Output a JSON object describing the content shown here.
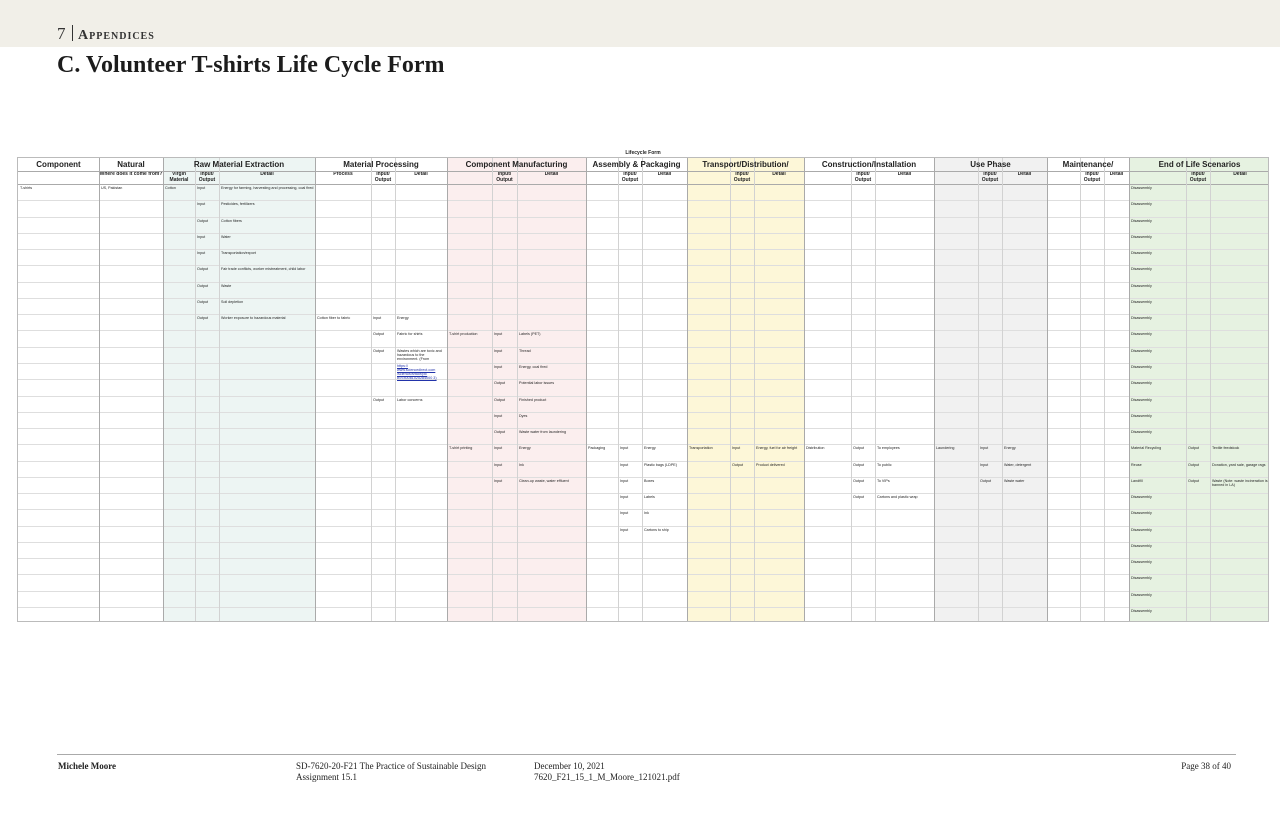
{
  "header": {
    "chapter_number": "7",
    "chapter_name": "Appendices"
  },
  "title": "C. Volunteer T-shirts Life Cycle Form",
  "form": {
    "form_title": "Lifecycle Form",
    "groups": [
      "Component",
      "Natural",
      "Raw Material Extraction",
      "Material Processing",
      "Component Manufacturing",
      "Assembly & Packaging",
      "Transport/Distribution/",
      "Construction/Installation",
      "Use Phase",
      "Maintenance/",
      "End of Life Scenarios"
    ],
    "subheaders": [
      {
        "col": 1,
        "text": "Where does it come from?"
      },
      {
        "col": 2,
        "text": "Virgin Material"
      },
      {
        "col": 3,
        "text": "Input/ Output"
      },
      {
        "col": 4,
        "text": "Detail"
      },
      {
        "col": 5,
        "text": "Process"
      },
      {
        "col": 6,
        "text": "Input/ Output"
      },
      {
        "col": 7,
        "text": "Detail"
      },
      {
        "col": 9,
        "text": "Input/ Output"
      },
      {
        "col": 10,
        "text": "Detail"
      },
      {
        "col": 12,
        "text": "Input/ Output"
      },
      {
        "col": 13,
        "text": "Detail"
      },
      {
        "col": 15,
        "text": "Input/ Output"
      },
      {
        "col": 16,
        "text": "Detail"
      },
      {
        "col": 18,
        "text": "Input/ Output"
      },
      {
        "col": 19,
        "text": "Detail"
      },
      {
        "col": 21,
        "text": "Input/ Output"
      },
      {
        "col": 22,
        "text": "Detail"
      },
      {
        "col": 24,
        "text": "Input/ Output"
      },
      {
        "col": 25,
        "text": "Detail"
      },
      {
        "col": 27,
        "text": "Input/ Output"
      },
      {
        "col": 28,
        "text": "Detail"
      }
    ],
    "colors": {
      "raw": "#edf5f3",
      "component_mfg": "#fbeeee",
      "transport": "#fdf7d8",
      "use": "#f1f1f1",
      "eol": "#e6f2e1"
    },
    "cells": [
      {
        "r": 0,
        "c": 0,
        "t": "T-shirts"
      },
      {
        "r": 0,
        "c": 1,
        "t": "US, Pakistan"
      },
      {
        "r": 0,
        "c": 2,
        "t": "Cotton"
      },
      {
        "r": 0,
        "c": 3,
        "t": "Input"
      },
      {
        "r": 0,
        "c": 4,
        "t": "Energy for farming, harvesting and processing, coal fired"
      },
      {
        "r": 1,
        "c": 3,
        "t": "Input"
      },
      {
        "r": 1,
        "c": 4,
        "t": "Pesticides, fertilizers"
      },
      {
        "r": 2,
        "c": 3,
        "t": "Output"
      },
      {
        "r": 2,
        "c": 4,
        "t": "Cotton fibers"
      },
      {
        "r": 3,
        "c": 3,
        "t": "Input"
      },
      {
        "r": 3,
        "c": 4,
        "t": "Water"
      },
      {
        "r": 4,
        "c": 3,
        "t": "Input"
      },
      {
        "r": 4,
        "c": 4,
        "t": "Transportation/export"
      },
      {
        "r": 5,
        "c": 3,
        "t": "Output"
      },
      {
        "r": 5,
        "c": 4,
        "t": "Fair trade conflicts, worker mistreatment, child labor"
      },
      {
        "r": 6,
        "c": 3,
        "t": "Output"
      },
      {
        "r": 6,
        "c": 4,
        "t": "Waste"
      },
      {
        "r": 7,
        "c": 3,
        "t": "Output"
      },
      {
        "r": 7,
        "c": 4,
        "t": "Soil depletion"
      },
      {
        "r": 8,
        "c": 3,
        "t": "Output"
      },
      {
        "r": 8,
        "c": 4,
        "t": "Worker exposure to hazardous material"
      },
      {
        "r": 8,
        "c": 5,
        "t": "Cotton fiber to fabric"
      },
      {
        "r": 8,
        "c": 6,
        "t": "Input"
      },
      {
        "r": 8,
        "c": 7,
        "t": "Energy"
      },
      {
        "r": 9,
        "c": 6,
        "t": "Output"
      },
      {
        "r": 9,
        "c": 7,
        "t": "Fabric for shirts"
      },
      {
        "r": 9,
        "c": 8,
        "t": "T-shirt production"
      },
      {
        "r": 9,
        "c": 9,
        "t": "Input"
      },
      {
        "r": 9,
        "c": 10,
        "t": "Labels (PET)"
      },
      {
        "r": 10,
        "c": 6,
        "t": "Output"
      },
      {
        "r": 10,
        "c": 7,
        "t": "Wastes which are toxic and hazardous to the environment. (From"
      },
      {
        "r": 10,
        "c": 9,
        "t": "Input"
      },
      {
        "r": 10,
        "c": 10,
        "t": "Thread"
      },
      {
        "r": 11,
        "c": 9,
        "t": "Input"
      },
      {
        "r": 11,
        "c": 10,
        "t": "Energy, coal fired"
      },
      {
        "r": 12,
        "c": 9,
        "t": "Output"
      },
      {
        "r": 12,
        "c": 10,
        "t": "Potential labor issues"
      },
      {
        "r": 13,
        "c": 6,
        "t": "Output"
      },
      {
        "r": 13,
        "c": 7,
        "t": "Labor concerns"
      },
      {
        "r": 13,
        "c": 9,
        "t": "Output"
      },
      {
        "r": 13,
        "c": 10,
        "t": "Finished product"
      },
      {
        "r": 14,
        "c": 9,
        "t": "Input"
      },
      {
        "r": 14,
        "c": 10,
        "t": "Dyes"
      },
      {
        "r": 15,
        "c": 9,
        "t": "Output"
      },
      {
        "r": 15,
        "c": 10,
        "t": "Waste water from laundering"
      },
      {
        "r": 16,
        "c": 8,
        "t": "T-shirt printing"
      },
      {
        "r": 16,
        "c": 9,
        "t": "Input"
      },
      {
        "r": 16,
        "c": 10,
        "t": "Energy"
      },
      {
        "r": 16,
        "c": 11,
        "t": "Packaging"
      },
      {
        "r": 16,
        "c": 12,
        "t": "Input"
      },
      {
        "r": 16,
        "c": 13,
        "t": "Energy"
      },
      {
        "r": 16,
        "c": 14,
        "t": "Transportation"
      },
      {
        "r": 16,
        "c": 15,
        "t": "Input"
      },
      {
        "r": 16,
        "c": 16,
        "t": "Energy, fuel for air freight"
      },
      {
        "r": 16,
        "c": 17,
        "t": "Distribution"
      },
      {
        "r": 16,
        "c": 18,
        "t": "Output"
      },
      {
        "r": 16,
        "c": 19,
        "t": "To employees"
      },
      {
        "r": 16,
        "c": 20,
        "t": "Laundering"
      },
      {
        "r": 16,
        "c": 21,
        "t": "Input"
      },
      {
        "r": 16,
        "c": 22,
        "t": "Energy"
      },
      {
        "r": 16,
        "c": 26,
        "t": "Material Recycling"
      },
      {
        "r": 16,
        "c": 27,
        "t": "Output"
      },
      {
        "r": 16,
        "c": 28,
        "t": "Textile feedstock"
      },
      {
        "r": 17,
        "c": 9,
        "t": "Input"
      },
      {
        "r": 17,
        "c": 10,
        "t": "Ink"
      },
      {
        "r": 17,
        "c": 12,
        "t": "Input"
      },
      {
        "r": 17,
        "c": 13,
        "t": "Plastic bags (LDPE)"
      },
      {
        "r": 17,
        "c": 15,
        "t": "Output"
      },
      {
        "r": 17,
        "c": 16,
        "t": "Product delivered"
      },
      {
        "r": 17,
        "c": 18,
        "t": "Output"
      },
      {
        "r": 17,
        "c": 19,
        "t": "To public"
      },
      {
        "r": 17,
        "c": 21,
        "t": "Input"
      },
      {
        "r": 17,
        "c": 22,
        "t": "Water, detergent"
      },
      {
        "r": 17,
        "c": 26,
        "t": "Reuse"
      },
      {
        "r": 17,
        "c": 27,
        "t": "Output"
      },
      {
        "r": 17,
        "c": 28,
        "t": "Donation, yard sale, garage rags"
      },
      {
        "r": 18,
        "c": 9,
        "t": "Input"
      },
      {
        "r": 18,
        "c": 10,
        "t": "Clean-up waste, water effluent"
      },
      {
        "r": 18,
        "c": 12,
        "t": "Input"
      },
      {
        "r": 18,
        "c": 13,
        "t": "Boxes"
      },
      {
        "r": 18,
        "c": 18,
        "t": "Output"
      },
      {
        "r": 18,
        "c": 19,
        "t": "To VIPs"
      },
      {
        "r": 18,
        "c": 21,
        "t": "Output"
      },
      {
        "r": 18,
        "c": 22,
        "t": "Waste water"
      },
      {
        "r": 18,
        "c": 26,
        "t": "Landfill"
      },
      {
        "r": 18,
        "c": 27,
        "t": "Output"
      },
      {
        "r": 18,
        "c": 28,
        "t": "Waste (Note: waste incineration is banned in LA)"
      },
      {
        "r": 19,
        "c": 12,
        "t": "Input"
      },
      {
        "r": 19,
        "c": 13,
        "t": "Labels"
      },
      {
        "r": 19,
        "c": 18,
        "t": "Output"
      },
      {
        "r": 19,
        "c": 19,
        "t": "Cartons and plastic wrap"
      },
      {
        "r": 20,
        "c": 12,
        "t": "Input"
      },
      {
        "r": 20,
        "c": 13,
        "t": "Ink"
      },
      {
        "r": 21,
        "c": 12,
        "t": "Input"
      },
      {
        "r": 21,
        "c": 13,
        "t": "Cartons to ship"
      }
    ],
    "link_text": "https:// www.sciencedirect.com /science/article/pii/ B9780081025284000 3)",
    "eol_default": "Disassembly"
  },
  "footer": {
    "author": "Michele Moore",
    "course": "SD-7620-20-F21 The Practice of Sustainable Design",
    "assignment": "Assignment 15.1",
    "date": "December 10, 2021",
    "file": "7620_F21_15_1_M_Moore_121021.pdf",
    "page": "Page 38 of 40"
  }
}
